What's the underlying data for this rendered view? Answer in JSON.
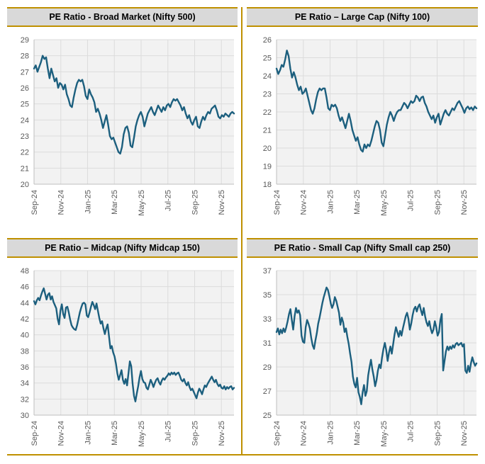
{
  "colors": {
    "accent_border": "#bf9000",
    "title_bar_bg": "#d9d9d9",
    "title_text": "#000000",
    "plot_bg": "#f2f2f2",
    "gridline": "#dcdcdc",
    "axis_line": "#bfbfbf",
    "tick_text": "#595959",
    "series_line": "#1c5f7e",
    "page_bg": "#ffffff"
  },
  "chart_data": [
    {
      "type": "line",
      "title": "PE Ratio - Broad Market (Nifty 500)",
      "x_tick_labels": [
        "Sep-24",
        "Nov-24",
        "Jan-25",
        "Mar-25",
        "May-25",
        "Jul-25",
        "Sep-25",
        "Nov-25"
      ],
      "ylim": [
        20,
        29
      ],
      "ytick_step": 1,
      "grid": true,
      "legend": "none",
      "values": [
        27.2,
        27.4,
        27.0,
        27.3,
        27.6,
        28.0,
        27.8,
        27.9,
        27.2,
        26.6,
        27.2,
        26.8,
        26.4,
        26.6,
        26.0,
        26.3,
        26.2,
        25.9,
        26.2,
        25.6,
        25.3,
        24.9,
        24.8,
        25.4,
        25.9,
        26.3,
        26.5,
        26.4,
        26.5,
        26.1,
        25.5,
        25.3,
        25.9,
        25.6,
        25.4,
        25.1,
        24.5,
        24.7,
        24.4,
        24.0,
        23.5,
        23.9,
        24.3,
        23.7,
        23.0,
        22.8,
        22.9,
        22.6,
        22.3,
        22.0,
        21.9,
        22.3,
        23.1,
        23.5,
        23.6,
        23.2,
        22.4,
        22.3,
        22.9,
        23.6,
        24.0,
        24.3,
        24.5,
        24.2,
        23.6,
        24.0,
        24.4,
        24.6,
        24.8,
        24.5,
        24.3,
        24.6,
        24.9,
        24.7,
        24.5,
        24.8,
        24.6,
        24.9,
        25.0,
        24.8,
        25.1,
        25.3,
        25.2,
        25.3,
        25.1,
        24.9,
        24.6,
        24.8,
        24.4,
        24.1,
        24.3,
        23.9,
        23.7,
        24.0,
        24.2,
        23.6,
        23.5,
        23.9,
        24.2,
        24.0,
        24.3,
        24.5,
        24.4,
        24.7,
        24.8,
        24.9,
        24.6,
        24.2,
        24.1,
        24.3,
        24.2,
        24.4,
        24.3,
        24.2,
        24.4,
        24.5,
        24.4
      ]
    },
    {
      "type": "line",
      "title": "PE Ratio – Large Cap (Nifty 100)",
      "x_tick_labels": [
        "Sep-24",
        "Nov-24",
        "Jan-25",
        "Mar-25",
        "May-25",
        "Jul-25",
        "Sep-25",
        "Nov-25"
      ],
      "ylim": [
        18,
        26
      ],
      "ytick_step": 1,
      "grid": true,
      "legend": "none",
      "values": [
        24.4,
        24.1,
        24.3,
        24.6,
        24.5,
        24.9,
        25.4,
        25.1,
        24.4,
        23.9,
        24.2,
        23.9,
        23.5,
        23.2,
        23.4,
        23.0,
        23.1,
        23.3,
        22.9,
        22.5,
        22.1,
        21.9,
        22.2,
        22.7,
        23.1,
        23.3,
        23.2,
        23.3,
        23.3,
        22.8,
        22.2,
        22.1,
        22.4,
        22.3,
        22.4,
        22.2,
        21.8,
        21.5,
        21.7,
        21.4,
        21.1,
        21.5,
        21.9,
        21.5,
        21.0,
        20.7,
        20.4,
        20.6,
        20.2,
        19.9,
        19.8,
        20.2,
        20.0,
        20.2,
        20.1,
        20.4,
        20.8,
        21.2,
        21.5,
        21.4,
        21.0,
        20.3,
        20.1,
        20.7,
        21.3,
        21.7,
        22.0,
        21.8,
        21.5,
        21.8,
        22.0,
        22.1,
        22.1,
        22.3,
        22.5,
        22.4,
        22.2,
        22.4,
        22.6,
        22.5,
        22.6,
        22.9,
        22.8,
        22.6,
        22.8,
        22.85,
        22.5,
        22.3,
        22.0,
        21.8,
        21.6,
        21.8,
        21.4,
        21.7,
        21.9,
        21.3,
        21.6,
        21.9,
        22.1,
        21.9,
        21.8,
        22.0,
        22.2,
        22.1,
        22.3,
        22.5,
        22.6,
        22.4,
        22.2,
        21.95,
        22.2,
        22.3,
        22.15,
        22.25,
        22.1,
        22.3,
        22.2
      ]
    },
    {
      "type": "line",
      "title": "PE Ratio – Midcap (Nifty Midcap 150)",
      "x_tick_labels": [
        "Sep-24",
        "Nov-24",
        "Jan-25",
        "Mar-25",
        "May-25",
        "Jul-25",
        "Sep-25",
        "Nov-25"
      ],
      "ylim": [
        30,
        48
      ],
      "ytick_step": 2,
      "grid": true,
      "legend": "none",
      "values": [
        44.2,
        43.8,
        44.3,
        44.6,
        44.3,
        44.9,
        45.4,
        45.8,
        45.1,
        44.4,
        45.0,
        45.2,
        44.4,
        44.8,
        44.1,
        43.7,
        43.3,
        42.0,
        41.3,
        43.0,
        43.8,
        42.6,
        42.1,
        43.4,
        43.5,
        42.8,
        41.9,
        41.2,
        40.9,
        40.7,
        40.6,
        41.2,
        42.0,
        42.8,
        43.4,
        43.9,
        44.0,
        43.8,
        42.4,
        42.2,
        42.8,
        43.5,
        44.1,
        43.7,
        43.2,
        43.9,
        43.0,
        42.1,
        41.4,
        41.7,
        40.8,
        40.1,
        40.8,
        41.3,
        39.8,
        38.3,
        38.6,
        37.8,
        37.3,
        36.4,
        35.2,
        34.4,
        35.0,
        35.6,
        34.4,
        33.9,
        34.5,
        33.7,
        35.2,
        36.7,
        36.1,
        33.9,
        32.4,
        31.7,
        32.7,
        33.6,
        34.7,
        35.5,
        34.5,
        34.1,
        34.0,
        33.4,
        33.2,
        33.8,
        34.4,
        34.0,
        33.5,
        34.0,
        34.4,
        34.6,
        34.1,
        33.8,
        34.3,
        34.6,
        34.4,
        34.7,
        34.9,
        35.2,
        35.0,
        35.3,
        35.1,
        35.3,
        35.0,
        35.2,
        35.3,
        34.9,
        34.4,
        34.2,
        34.5,
        34.0,
        33.7,
        34.1,
        33.5,
        33.1,
        33.3,
        32.9,
        32.5,
        32.1,
        32.8,
        33.3,
        33.0,
        32.6,
        33.2,
        33.7,
        33.5,
        33.9,
        34.2,
        34.5,
        34.8,
        34.4,
        34.1,
        34.4,
        33.9,
        33.6,
        33.8,
        33.4,
        33.3,
        33.6,
        33.2,
        33.5,
        33.3,
        33.5,
        33.6,
        33.2,
        33.4
      ]
    },
    {
      "type": "line",
      "title": "PE Ratio - Small Cap (Nifty Small cap 250)",
      "x_tick_labels": [
        "Sep-24",
        "Nov-24",
        "Jan-25",
        "Mar-25",
        "May-25",
        "Jul-25",
        "Sep-25",
        "Nov-25"
      ],
      "ylim": [
        25,
        37
      ],
      "ytick_step": 2,
      "grid": true,
      "legend": "none",
      "values": [
        31.9,
        32.2,
        31.7,
        32.1,
        31.8,
        32.2,
        31.9,
        32.3,
        32.8,
        33.4,
        33.8,
        32.9,
        32.1,
        33.2,
        33.9,
        33.5,
        33.7,
        33.3,
        31.6,
        31.1,
        31.0,
        32.3,
        32.9,
        32.6,
        32.2,
        31.4,
        30.8,
        30.5,
        31.2,
        31.8,
        32.6,
        33.1,
        33.7,
        34.3,
        34.8,
        35.2,
        35.6,
        35.4,
        34.9,
        34.3,
        33.9,
        34.2,
        34.8,
        34.5,
        34.0,
        33.5,
        32.5,
        33.1,
        32.7,
        31.9,
        32.2,
        31.5,
        30.9,
        30.1,
        29.4,
        28.2,
        27.6,
        27.3,
        28.1,
        26.9,
        26.5,
        25.9,
        26.9,
        27.5,
        26.6,
        27.0,
        28.3,
        29.0,
        29.6,
        28.8,
        28.2,
        27.4,
        27.9,
        28.7,
        29.2,
        28.9,
        29.8,
        30.5,
        31.0,
        30.4,
        29.5,
        30.2,
        30.7,
        30.1,
        30.9,
        31.7,
        32.3,
        31.9,
        31.5,
        32.0,
        31.6,
        32.2,
        32.7,
        33.2,
        33.5,
        33.0,
        32.1,
        32.6,
        33.3,
        33.8,
        34.0,
        33.6,
        34.0,
        34.2,
        33.7,
        33.3,
        33.9,
        33.2,
        32.7,
        32.4,
        32.8,
        32.2,
        31.8,
        32.1,
        32.8,
        32.3,
        31.6,
        31.9,
        32.9,
        33.4,
        28.7,
        29.5,
        30.3,
        30.7,
        30.4,
        30.7,
        30.5,
        30.8,
        30.6,
        30.9,
        31.0,
        30.8,
        30.9,
        31.0,
        30.7,
        30.9,
        28.7,
        28.5,
        29.1,
        28.6,
        29.3,
        29.8,
        29.4,
        29.1,
        29.3
      ]
    }
  ]
}
